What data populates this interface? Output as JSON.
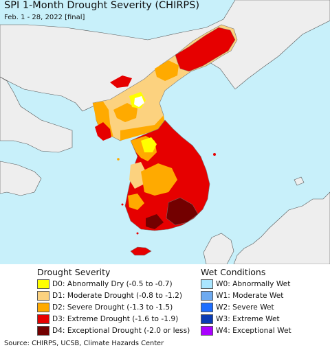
{
  "map": {
    "title": "SPI 1-Month Drought Severity (CHIRPS)",
    "subtitle": "Feb. 1 - 28, 2022 [final]",
    "colors": {
      "ocean": "#c8f0fa",
      "land_outside": "#eeeeee",
      "border": "#555555"
    }
  },
  "legend_drought": {
    "title": "Drought Severity",
    "items": [
      {
        "label": "D0: Abnormally Dry (-0.5 to -0.7)",
        "color": "#ffff00"
      },
      {
        "label": "D1: Moderate Drought (-0.8 to -1.2)",
        "color": "#fcd27f"
      },
      {
        "label": "D2: Severe Drought (-1.3 to -1.5)",
        "color": "#ffaa00"
      },
      {
        "label": "D3: Extreme Drought (-1.6 to -1.9)",
        "color": "#e60000"
      },
      {
        "label": "D4: Exceptional Drought (-2.0 or less)",
        "color": "#730000"
      }
    ]
  },
  "legend_wet": {
    "title": "Wet Conditions",
    "items": [
      {
        "label": "W0: Abnormally Wet",
        "color": "#aae6ff"
      },
      {
        "label": "W1: Moderate Wet",
        "color": "#6eaaf0"
      },
      {
        "label": "W2: Severe Wet",
        "color": "#1e6eff"
      },
      {
        "label": "W3: Extreme Wet",
        "color": "#0a3cb4"
      },
      {
        "label": "W4: Exceptional Wet",
        "color": "#aa00ff"
      }
    ]
  },
  "footer": {
    "source": "Source: CHIRPS, UCSB, Climate Hazards Center"
  }
}
